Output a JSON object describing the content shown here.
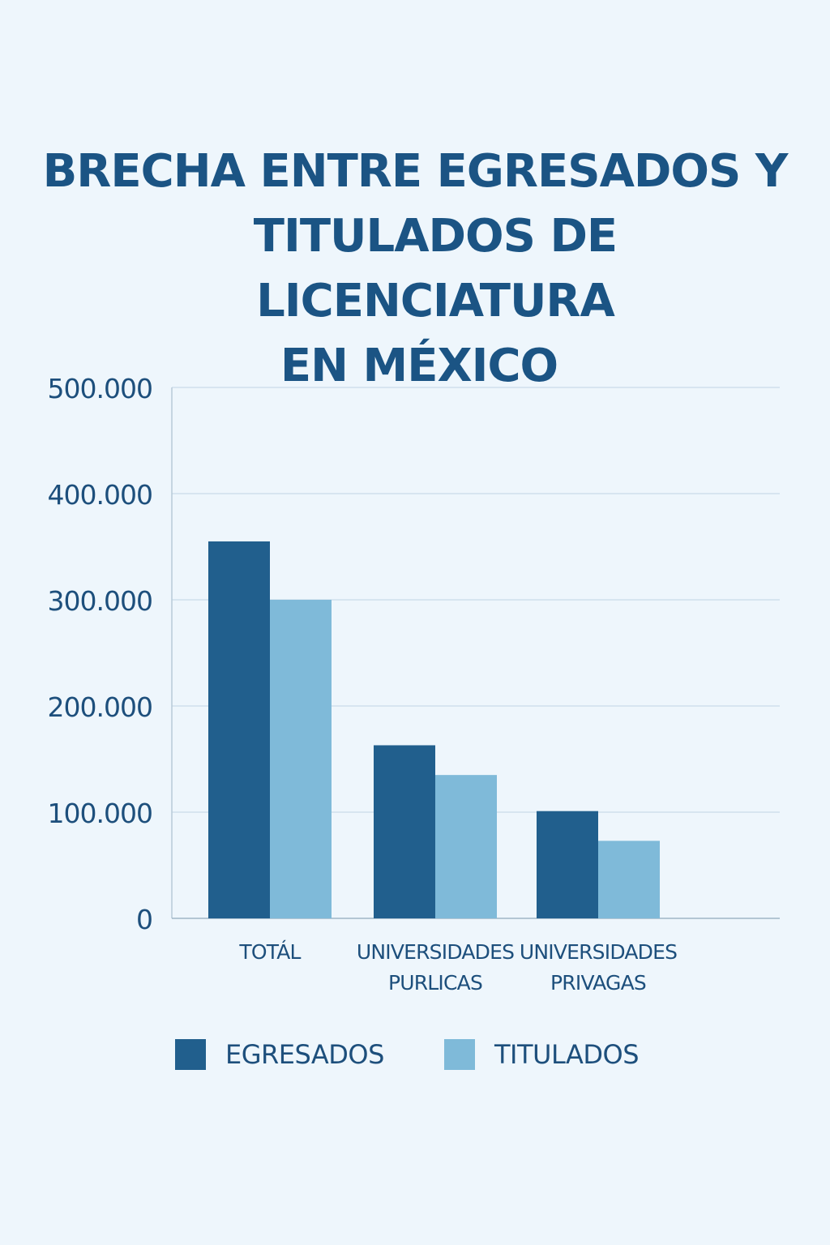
{
  "chart_data": {
    "type": "bar",
    "title": [
      "BRECHA ENTRE EGRESADOS Y",
      "TITULADOS DE LICENCIATURA",
      "EN MÉXICO"
    ],
    "categories": [
      [
        "TOTÁL"
      ],
      [
        "UNIVERSIDADES",
        "PURLICAS"
      ],
      [
        "UNIVERSIDADES",
        "PRIVAGAS"
      ]
    ],
    "series": [
      {
        "name": "EGRESADOS",
        "color": "#215f8d",
        "values": [
          355000,
          163000,
          101000
        ]
      },
      {
        "name": "TITULADOS",
        "color": "#7fbad9",
        "values": [
          300000,
          135000,
          73000
        ]
      }
    ],
    "ylim": [
      0,
      500000
    ],
    "yticks": [
      {
        "value": 0,
        "label": "0"
      },
      {
        "value": 100000,
        "label": "100.000"
      },
      {
        "value": 200000,
        "label": "200.000"
      },
      {
        "value": 300000,
        "label": "300.000"
      },
      {
        "value": 400000,
        "label": "400.000"
      },
      {
        "value": 500000,
        "label": "500.000"
      }
    ],
    "grid": true,
    "legend_position": "bottom"
  }
}
